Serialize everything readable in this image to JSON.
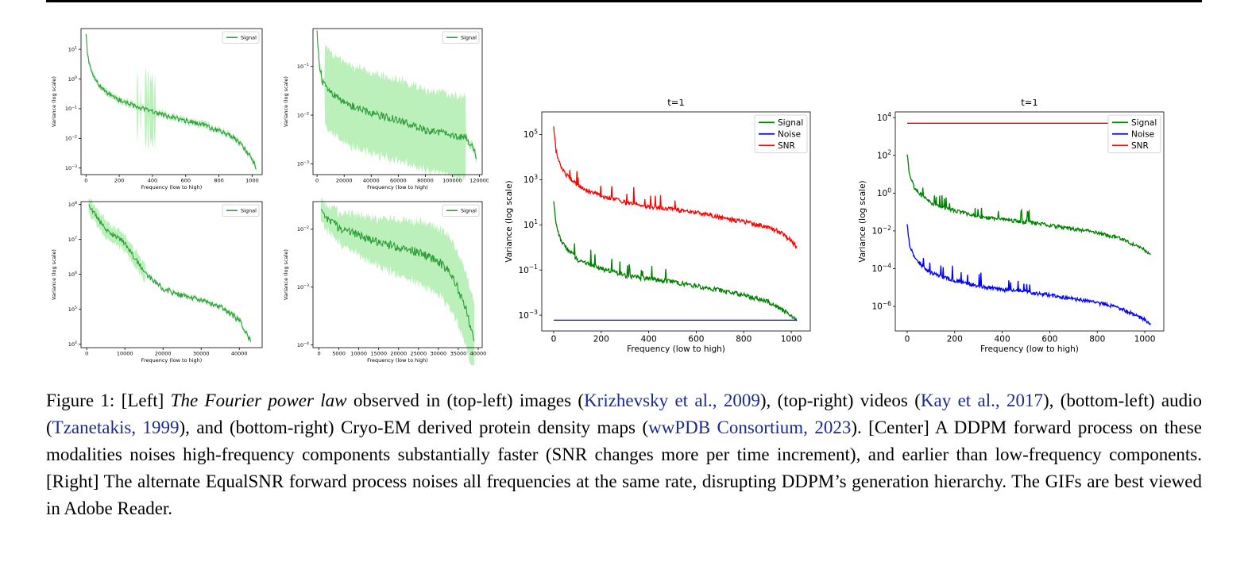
{
  "chart_data": [
    {
      "id": "images",
      "type": "line",
      "title": "",
      "xlabel": "Frequency (low to high)",
      "ylabel": "Variance (log scale)",
      "xlim": [
        -30,
        1060
      ],
      "xticks": [
        0,
        200,
        400,
        600,
        800,
        1000
      ],
      "ylim": [
        0.0006,
        50
      ],
      "log_y": true,
      "yticks": [
        0.001,
        0.01,
        0.1,
        1,
        10
      ],
      "ytick_labels": [
        "10^-3",
        "10^-2",
        "10^-1",
        "10^0",
        "10^1"
      ],
      "legend": [
        "Signal"
      ],
      "legend_position": "top-right",
      "series": [
        {
          "name": "Signal",
          "color": "#2e9d3a",
          "band": true,
          "x": [
            0,
            10,
            30,
            60,
            100,
            150,
            200,
            300,
            400,
            500,
            600,
            700,
            800,
            900,
            950,
            1000,
            1024
          ],
          "y": [
            30,
            6,
            2,
            0.9,
            0.45,
            0.28,
            0.2,
            0.12,
            0.08,
            0.055,
            0.04,
            0.03,
            0.018,
            0.01,
            0.005,
            0.002,
            0.001
          ]
        }
      ]
    },
    {
      "id": "videos",
      "type": "line",
      "title": "",
      "xlabel": "Frequency (low to high)",
      "ylabel": "Variance (log scale)",
      "xlim": [
        -3000,
        122000
      ],
      "xticks": [
        0,
        20000,
        40000,
        60000,
        80000,
        100000,
        120000
      ],
      "ylim": [
        0.0006,
        0.6
      ],
      "log_y": true,
      "yticks": [
        0.001,
        0.01,
        0.1
      ],
      "ytick_labels": [
        "10^-3",
        "10^-2",
        "10^-1"
      ],
      "legend": [
        "Signal"
      ],
      "legend_position": "top-right",
      "series": [
        {
          "name": "Signal",
          "color": "#2e9d3a",
          "band": true,
          "x": [
            0,
            1500,
            4000,
            10000,
            20000,
            40000,
            60000,
            80000,
            100000,
            110000,
            116000,
            118000
          ],
          "y": [
            0.5,
            0.12,
            0.05,
            0.03,
            0.018,
            0.011,
            0.008,
            0.005,
            0.004,
            0.0035,
            0.002,
            0.0013
          ]
        }
      ]
    },
    {
      "id": "audio",
      "type": "line",
      "title": "",
      "xlabel": "Frequency (low to high)",
      "ylabel": "Variance (log scale)",
      "xlim": [
        -1500,
        46000
      ],
      "xticks": [
        0,
        10000,
        20000,
        30000,
        40000
      ],
      "ylim": [
        8000,
        120000000
      ],
      "log_y": true,
      "yticks": [
        10000,
        100000,
        1000000,
        10000000,
        100000000
      ],
      "ytick_labels": [
        "10^4",
        "10^5",
        "10^6",
        "10^7",
        "10^8"
      ],
      "legend": [
        "Signal"
      ],
      "legend_position": "top-right",
      "series": [
        {
          "name": "Signal",
          "color": "#2e9d3a",
          "band": true,
          "x": [
            500,
            2000,
            5000,
            8000,
            10000,
            13000,
            16000,
            20000,
            25000,
            30000,
            35000,
            40000,
            43000
          ],
          "y": [
            90000000,
            60000000,
            18000000,
            12000000,
            8000000,
            2500000,
            900000,
            400000,
            250000,
            180000,
            120000,
            50000,
            12000
          ]
        }
      ]
    },
    {
      "id": "cryo-em",
      "type": "line",
      "title": "",
      "xlabel": "Frequency (low to high)",
      "ylabel": "Variance (log scale)",
      "xlim": [
        -1500,
        41000
      ],
      "xticks": [
        0,
        5000,
        10000,
        15000,
        20000,
        25000,
        30000,
        35000,
        40000
      ],
      "ylim": [
        9e-05,
        0.03
      ],
      "log_y": true,
      "yticks": [
        0.0001,
        0.001,
        0.01
      ],
      "ytick_labels": [
        "10^-4",
        "10^-3",
        "10^-2"
      ],
      "legend": [
        "Signal"
      ],
      "legend_position": "top-right",
      "series": [
        {
          "name": "Signal",
          "color": "#2e9d3a",
          "band": true,
          "x": [
            500,
            2000,
            5000,
            10000,
            15000,
            20000,
            25000,
            30000,
            33000,
            35000,
            37000,
            39000
          ],
          "y": [
            0.02,
            0.015,
            0.011,
            0.008,
            0.006,
            0.005,
            0.004,
            0.0028,
            0.0018,
            0.0009,
            0.0004,
            0.00012
          ]
        }
      ]
    },
    {
      "id": "ddpm",
      "type": "line",
      "title": "t=1",
      "xlabel": "Frequency (low to high)",
      "ylabel": "Variance (log scale)",
      "xlim": [
        -50,
        1080
      ],
      "xticks": [
        0,
        200,
        400,
        600,
        800,
        1000
      ],
      "ylim": [
        0.0002,
        1000000
      ],
      "log_y": true,
      "yticks": [
        0.001,
        0.1,
        10,
        1000,
        100000
      ],
      "ytick_labels": [
        "10^-3",
        "10^-1",
        "10^1",
        "10^3",
        "10^5"
      ],
      "legend": [
        "Signal",
        "Noise",
        "SNR"
      ],
      "legend_position": "top-right",
      "series": [
        {
          "name": "Signal",
          "color": "#008000",
          "x": [
            0,
            10,
            30,
            60,
            100,
            150,
            200,
            300,
            400,
            500,
            600,
            700,
            800,
            900,
            950,
            1000,
            1024
          ],
          "y": [
            100,
            10,
            2,
            0.8,
            0.3,
            0.18,
            0.12,
            0.06,
            0.04,
            0.03,
            0.02,
            0.013,
            0.008,
            0.004,
            0.002,
            0.001,
            0.0006
          ]
        },
        {
          "name": "Noise",
          "color": "#0000ff",
          "x": [
            0,
            1024
          ],
          "y": [
            0.0006,
            0.0006
          ]
        },
        {
          "name": "SNR",
          "color": "#ff0000",
          "x": [
            0,
            10,
            30,
            60,
            100,
            150,
            200,
            300,
            400,
            500,
            600,
            700,
            800,
            900,
            950,
            1000,
            1024
          ],
          "y": [
            200000,
            20000,
            3500,
            1400,
            600,
            300,
            200,
            100,
            65,
            50,
            35,
            22,
            14,
            8,
            5,
            2,
            1
          ]
        }
      ]
    },
    {
      "id": "equalsnr",
      "type": "line",
      "title": "t=1",
      "xlabel": "Frequency (low to high)",
      "ylabel": "Variance (log scale)",
      "xlim": [
        -50,
        1080
      ],
      "xticks": [
        0,
        200,
        400,
        600,
        800,
        1000
      ],
      "ylim": [
        5e-08,
        20000
      ],
      "log_y": true,
      "yticks": [
        1e-06,
        0.0001,
        0.01,
        1,
        100,
        10000
      ],
      "ytick_labels": [
        "10^-6",
        "10^-4",
        "10^-2",
        "10^0",
        "10^2",
        "10^4"
      ],
      "legend": [
        "Signal",
        "Noise",
        "SNR"
      ],
      "legend_position": "top-right",
      "series": [
        {
          "name": "Signal",
          "color": "#008000",
          "x": [
            0,
            10,
            30,
            60,
            100,
            150,
            200,
            300,
            400,
            500,
            600,
            700,
            800,
            900,
            950,
            1000,
            1024
          ],
          "y": [
            100,
            10,
            2,
            0.8,
            0.3,
            0.18,
            0.12,
            0.06,
            0.04,
            0.03,
            0.02,
            0.013,
            0.008,
            0.004,
            0.002,
            0.001,
            0.0005
          ]
        },
        {
          "name": "Noise",
          "color": "#0000ff",
          "x": [
            0,
            10,
            30,
            60,
            100,
            150,
            200,
            300,
            400,
            500,
            600,
            700,
            800,
            900,
            950,
            1000,
            1024
          ],
          "y": [
            0.02,
            0.002,
            0.0004,
            0.00016,
            6e-05,
            3.6e-05,
            2.4e-05,
            1.2e-05,
            8e-06,
            6e-06,
            4e-06,
            2.6e-06,
            1.6e-06,
            8e-07,
            4e-07,
            2e-07,
            1e-07
          ]
        },
        {
          "name": "SNR",
          "color": "#ff0000",
          "x": [
            0,
            1024
          ],
          "y": [
            5000,
            5000
          ]
        }
      ]
    }
  ],
  "caption": {
    "p1": "Figure 1: [Left] ",
    "i1": "The Fourier power law",
    "p2": " observed in (top-left) images (",
    "c1": "Krizhevsky et al., 2009",
    "p3": "), (top-right) videos (",
    "c2": "Kay et al., 2017",
    "p4": "), (bottom-left) audio (",
    "c3": "Tzanetakis, 1999",
    "p5": "), and (bottom-right) Cryo-EM derived protein density maps (",
    "c4": "wwPDB Consortium, 2023",
    "p6": "). [Center] A DDPM forward process on these modalities noises high-frequency components substantially faster (SNR changes more per time increment), and earlier than low-frequency components. [Right] The alternate EqualSNR forward process noises all frequencies at the same rate, disrupting DDPM’s generation hierarchy. The GIFs are best viewed in Adobe Reader."
  }
}
